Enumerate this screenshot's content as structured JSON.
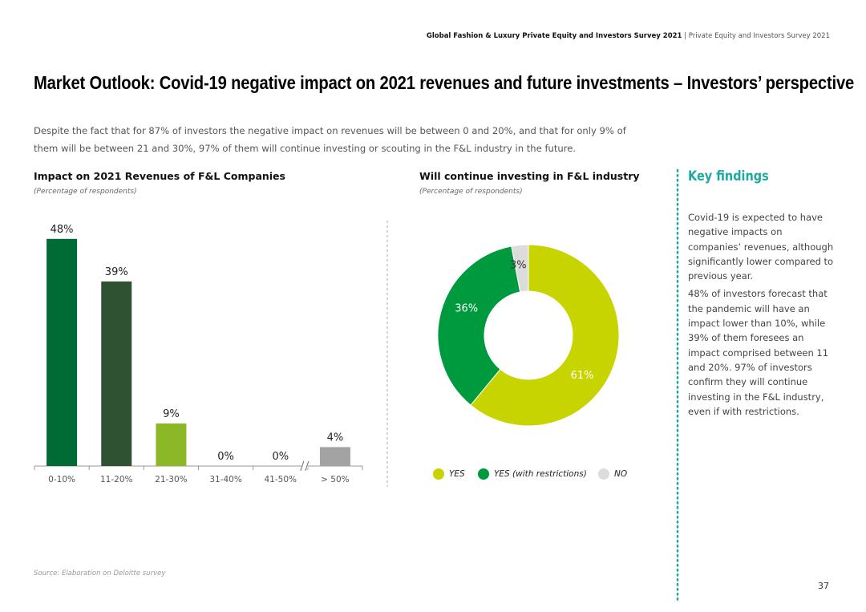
{
  "header": {
    "report": "Global Fashion & Luxury Private Equity and Investors Survey 2021",
    "separator": "|",
    "section": "Private Equity and Investors Survey 2021"
  },
  "title": "Market Outlook: Covid-19 negative impact on 2021 revenues and future investments – Investors’ perspective",
  "intro": "Despite the fact that for 87% of investors the negative impact on revenues will be between 0 and 20%, and that for only 9% of them will be between 21 and 30%, 97% of them will continue investing or scouting in the F&L industry in the future.",
  "chart_data": [
    {
      "type": "bar",
      "title": "Impact on 2021 Revenues of F&L Companies",
      "subtitle": "(Percentage of respondents)",
      "categories": [
        "0-10%",
        "11-20%",
        "21-30%",
        "31-40%",
        "41-50%",
        "> 50%"
      ],
      "values": [
        48,
        39,
        9,
        0,
        0,
        4
      ],
      "value_labels": [
        "48%",
        "39%",
        "9%",
        "0%",
        "0%",
        "4%"
      ],
      "colors": [
        "#006b35",
        "#2f5233",
        "#8cb827",
        "#8cb827",
        "#8cb827",
        "#a3a3a3"
      ],
      "ylim": [
        0,
        50
      ]
    },
    {
      "type": "donut",
      "title": "Will continue investing in F&L industry",
      "subtitle": "(Percentage of respondents)",
      "series": [
        {
          "name": "YES",
          "color": "#c8d400",
          "values": [
            61
          ],
          "value_labels": [
            "61%"
          ]
        },
        {
          "name": "YES (with restrictions)",
          "color": "#009a3e",
          "values": [
            36
          ],
          "value_labels": [
            "36%"
          ]
        },
        {
          "name": "NO",
          "color": "#dcdcdc",
          "values": [
            3
          ],
          "value_labels": [
            "3%"
          ]
        }
      ]
    }
  ],
  "key_findings": {
    "title": "Key findings",
    "paragraphs": [
      "Covid-19 is expected to have negative impacts on companies’ revenues, although significantly lower compared to previous year.",
      "48% of investors forecast that the pandemic will have an impact lower than 10%, while 39% of them foresees an impact comprised between 11 and 20%. 97% of investors confirm they will continue investing in the F&L industry, even if with restrictions."
    ]
  },
  "source": "Source: Elaboration on Deloitte survey",
  "page_number": "37"
}
